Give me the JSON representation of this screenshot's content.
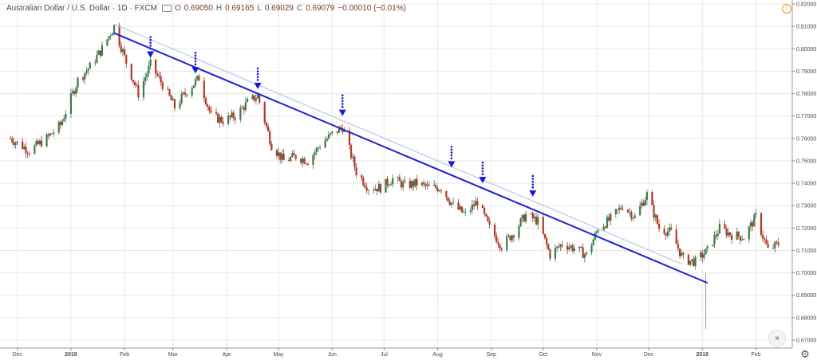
{
  "legend": {
    "symbol": "Australian Dollar / U.S. Dollar · 1D · FXCM",
    "open_label": "O",
    "open": "0.69050",
    "high_label": "H",
    "high": "0.69165",
    "low_label": "L",
    "low": "0.69029",
    "close_label": "C",
    "close": "0.69079",
    "change": "−0.00010 (−0.01%)"
  },
  "icons": {
    "info": "info-icon",
    "scroll": "scroll-right-icon",
    "settings": "gear-icon"
  },
  "colors": {
    "up": "#3d7a4f",
    "down": "#b0392a",
    "trendline": "#1f1fd6",
    "channel": "#c5c5f0",
    "arrow": "#1616e0",
    "grid": "#e8e8e8"
  },
  "chart_data": {
    "type": "candlestick",
    "title": "",
    "x_ticks": [
      "Dec",
      "2018",
      "Feb",
      "Mar",
      "Apr",
      "May",
      "Jun",
      "Jul",
      "Aug",
      "Sep",
      "Oct",
      "Nov",
      "Dec",
      "2019",
      "Feb"
    ],
    "y_ticks": [
      "0.82000",
      "0.81000",
      "0.80000",
      "0.79000",
      "0.78000",
      "0.77000",
      "0.76000",
      "0.75000",
      "0.74000",
      "0.73000",
      "0.72000",
      "0.71000",
      "0.70000",
      "0.69000",
      "0.68000",
      "0.67000"
    ],
    "ylim": [
      0.668,
      0.8205
    ],
    "close_series": [
      [
        "2017-11-27",
        0.76
      ],
      [
        "2017-12-08",
        0.7545
      ],
      [
        "2017-12-18",
        0.76
      ],
      [
        "2017-12-26",
        0.766
      ],
      [
        "2018-01-05",
        0.786
      ],
      [
        "2018-01-12",
        0.792
      ],
      [
        "2018-01-19",
        0.8
      ],
      [
        "2018-01-26",
        0.81
      ],
      [
        "2018-02-02",
        0.794
      ],
      [
        "2018-02-09",
        0.78
      ],
      [
        "2018-02-16",
        0.793
      ],
      [
        "2018-02-23",
        0.784
      ],
      [
        "2018-03-02",
        0.774
      ],
      [
        "2018-03-09",
        0.781
      ],
      [
        "2018-03-16",
        0.787
      ],
      [
        "2018-03-23",
        0.77
      ],
      [
        "2018-03-30",
        0.768
      ],
      [
        "2018-04-06",
        0.77
      ],
      [
        "2018-04-13",
        0.776
      ],
      [
        "2018-04-19",
        0.779
      ],
      [
        "2018-04-27",
        0.757
      ],
      [
        "2018-05-04",
        0.75
      ],
      [
        "2018-05-11",
        0.752
      ],
      [
        "2018-05-18",
        0.75
      ],
      [
        "2018-05-25",
        0.757
      ],
      [
        "2018-06-01",
        0.762
      ],
      [
        "2018-06-07",
        0.765
      ],
      [
        "2018-06-15",
        0.745
      ],
      [
        "2018-06-22",
        0.738
      ],
      [
        "2018-06-29",
        0.738
      ],
      [
        "2018-07-06",
        0.742
      ],
      [
        "2018-07-13",
        0.739
      ],
      [
        "2018-07-20",
        0.74
      ],
      [
        "2018-07-27",
        0.738
      ],
      [
        "2018-08-03",
        0.738
      ],
      [
        "2018-08-10",
        0.73
      ],
      [
        "2018-08-17",
        0.726
      ],
      [
        "2018-08-24",
        0.732
      ],
      [
        "2018-08-31",
        0.72
      ],
      [
        "2018-09-07",
        0.712
      ],
      [
        "2018-09-14",
        0.718
      ],
      [
        "2018-09-21",
        0.726
      ],
      [
        "2018-09-28",
        0.723
      ],
      [
        "2018-10-05",
        0.708
      ],
      [
        "2018-10-12",
        0.713
      ],
      [
        "2018-10-19",
        0.711
      ],
      [
        "2018-10-26",
        0.708
      ],
      [
        "2018-11-02",
        0.72
      ],
      [
        "2018-11-09",
        0.724
      ],
      [
        "2018-11-16",
        0.73
      ],
      [
        "2018-11-23",
        0.725
      ],
      [
        "2018-11-30",
        0.735
      ],
      [
        "2018-12-07",
        0.72
      ],
      [
        "2018-12-14",
        0.718
      ],
      [
        "2018-12-21",
        0.706
      ],
      [
        "2018-12-28",
        0.705
      ],
      [
        "2019-01-04",
        0.71
      ],
      [
        "2019-01-11",
        0.72
      ],
      [
        "2019-01-18",
        0.717
      ],
      [
        "2019-01-25",
        0.716
      ],
      [
        "2019-02-01",
        0.725
      ],
      [
        "2019-02-08",
        0.71
      ],
      [
        "2019-02-14",
        0.713
      ]
    ],
    "flash_crash_low": [
      "2019-01-03",
      0.675
    ],
    "trendline": [
      [
        "2018-01-26",
        0.807
      ],
      [
        "2019-01-04",
        0.6955
      ]
    ],
    "channel_line": [
      [
        "2018-01-26",
        0.811
      ],
      [
        "2018-12-20",
        0.704
      ]
    ],
    "arrows": [
      [
        "2018-02-16",
        0.796
      ],
      [
        "2018-03-14",
        0.789
      ],
      [
        "2018-04-19",
        0.782
      ],
      [
        "2018-06-07",
        0.77
      ],
      [
        "2018-08-09",
        0.747
      ],
      [
        "2018-08-27",
        0.74
      ],
      [
        "2018-09-25",
        0.734
      ]
    ]
  }
}
